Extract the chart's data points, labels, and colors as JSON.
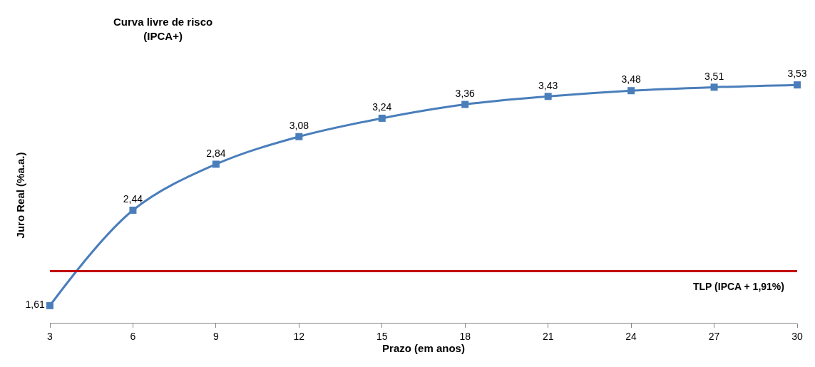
{
  "chart_data": {
    "type": "line",
    "title": "Curva livre de risco\n(IPCA+)",
    "xlabel": "Prazo (em anos)",
    "ylabel": "Juro Real (%a.a.)",
    "x": [
      3,
      6,
      9,
      12,
      15,
      18,
      21,
      24,
      27,
      30
    ],
    "series": [
      {
        "color": "#4a7ebb",
        "values": [
          1.61,
          2.44,
          2.84,
          3.08,
          3.24,
          3.36,
          3.43,
          3.48,
          3.51,
          3.53
        ],
        "value_labels": [
          "1,61",
          "2,44",
          "2,84",
          "3,08",
          "3,24",
          "3,36",
          "3,43",
          "3,48",
          "3,51",
          "3,53"
        ]
      }
    ],
    "xlim": [
      3,
      30
    ],
    "xticks": [
      3,
      6,
      9,
      12,
      15,
      18,
      21,
      24,
      27,
      30
    ],
    "ref_lines": [
      {
        "axis": "y",
        "value": 1.91,
        "label": "TLP (IPCA + 1,91%)",
        "color": "#c00000"
      }
    ],
    "marker": "square",
    "line_style": "solid",
    "grid": false,
    "legend": false,
    "tick_labels": "x"
  }
}
